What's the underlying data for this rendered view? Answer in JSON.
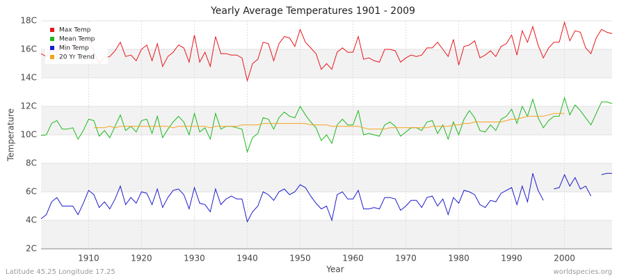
{
  "chart_data": {
    "type": "line",
    "title": "Yearly Average Temperatures 1901 - 2009",
    "x_label": "Year",
    "y_label": "Temperature",
    "footer_left": "Latitude 45.25 Longitude 17.25",
    "footer_right": "worldspecies.org",
    "x": [
      1901,
      1902,
      1903,
      1904,
      1905,
      1906,
      1907,
      1908,
      1909,
      1910,
      1911,
      1912,
      1913,
      1914,
      1915,
      1916,
      1917,
      1918,
      1919,
      1920,
      1921,
      1922,
      1923,
      1924,
      1925,
      1926,
      1927,
      1928,
      1929,
      1930,
      1931,
      1932,
      1933,
      1934,
      1935,
      1936,
      1937,
      1938,
      1939,
      1940,
      1941,
      1942,
      1943,
      1944,
      1945,
      1946,
      1947,
      1948,
      1949,
      1950,
      1951,
      1952,
      1953,
      1954,
      1955,
      1956,
      1957,
      1958,
      1959,
      1960,
      1961,
      1962,
      1963,
      1964,
      1965,
      1966,
      1967,
      1968,
      1969,
      1970,
      1971,
      1972,
      1973,
      1974,
      1975,
      1976,
      1977,
      1978,
      1979,
      1980,
      1981,
      1982,
      1983,
      1984,
      1985,
      1986,
      1987,
      1988,
      1989,
      1990,
      1991,
      1992,
      1993,
      1994,
      1995,
      1996,
      1997,
      1998,
      1999,
      2000,
      2001,
      2002,
      2003,
      2004,
      2005,
      2006,
      2007,
      2008,
      2009
    ],
    "series": [
      {
        "name": "Max Temp",
        "color": "#e8161b",
        "values": [
          15.7,
          15.5,
          15.9,
          15.8,
          16.6,
          15.8,
          16.3,
          16.7,
          16.8,
          16.6,
          15.9,
          15.0,
          15.4,
          15.5,
          15.9,
          16.5,
          15.5,
          15.6,
          15.2,
          16.0,
          16.3,
          15.2,
          16.4,
          14.8,
          15.5,
          15.8,
          16.3,
          16.1,
          15.1,
          17.0,
          15.1,
          15.8,
          14.8,
          16.9,
          15.7,
          15.7,
          15.6,
          15.6,
          15.4,
          13.8,
          15.0,
          15.3,
          16.5,
          16.4,
          15.2,
          16.4,
          16.9,
          16.8,
          16.2,
          17.4,
          16.5,
          16.1,
          15.7,
          14.6,
          15.0,
          14.6,
          15.8,
          16.1,
          15.8,
          15.8,
          16.9,
          15.3,
          15.4,
          15.2,
          15.1,
          16.0,
          16.0,
          15.9,
          15.1,
          15.4,
          15.6,
          15.5,
          15.6,
          16.1,
          16.1,
          16.5,
          16.0,
          15.5,
          16.7,
          14.9,
          16.2,
          16.3,
          16.6,
          15.4,
          15.6,
          15.9,
          15.5,
          16.2,
          16.4,
          17.0,
          15.6,
          17.3,
          16.5,
          17.6,
          16.3,
          15.4,
          16.1,
          16.5,
          16.5,
          17.9,
          16.6,
          17.3,
          17.2,
          16.1,
          15.7,
          16.8,
          17.4,
          17.2,
          17.1
        ]
      },
      {
        "name": "Mean Temp",
        "color": "#1db81d",
        "values": [
          9.95,
          10.0,
          10.8,
          11.0,
          10.4,
          10.4,
          10.5,
          9.7,
          10.3,
          11.1,
          11.0,
          9.9,
          10.3,
          9.8,
          10.6,
          11.4,
          10.3,
          10.6,
          10.2,
          11.0,
          11.1,
          10.1,
          11.3,
          9.8,
          10.4,
          10.9,
          11.3,
          10.9,
          10.0,
          11.5,
          10.2,
          10.5,
          9.7,
          11.5,
          10.4,
          10.6,
          10.6,
          10.5,
          10.4,
          8.8,
          9.8,
          10.1,
          11.2,
          11.1,
          10.4,
          11.2,
          11.6,
          11.3,
          11.2,
          12.0,
          11.4,
          10.9,
          10.5,
          9.6,
          10.0,
          9.4,
          10.7,
          11.1,
          10.7,
          10.7,
          11.7,
          10.0,
          10.1,
          10.0,
          9.9,
          10.7,
          10.9,
          10.6,
          9.9,
          10.2,
          10.5,
          10.5,
          10.3,
          10.9,
          11.0,
          10.1,
          10.7,
          9.7,
          10.9,
          10.0,
          11.1,
          11.7,
          11.2,
          10.3,
          10.2,
          10.7,
          10.3,
          11.1,
          11.3,
          11.8,
          10.8,
          12.0,
          11.3,
          12.5,
          11.2,
          10.5,
          11.0,
          11.3,
          11.3,
          12.6,
          11.4,
          12.1,
          11.7,
          11.2,
          10.7,
          11.5,
          12.3,
          12.3,
          12.2
        ]
      },
      {
        "name": "Min Temp",
        "color": "#1b1bcc",
        "values": [
          4.1,
          4.4,
          5.3,
          5.6,
          5.0,
          5.0,
          5.0,
          4.4,
          5.2,
          6.1,
          5.8,
          4.9,
          5.3,
          4.8,
          5.5,
          6.4,
          5.1,
          5.6,
          5.2,
          6.0,
          5.9,
          5.1,
          6.2,
          4.9,
          5.6,
          6.1,
          6.2,
          5.8,
          4.8,
          6.3,
          5.2,
          5.1,
          4.6,
          6.2,
          5.1,
          5.5,
          5.7,
          5.5,
          5.5,
          3.9,
          4.6,
          5.0,
          6.0,
          5.8,
          5.4,
          6.0,
          6.2,
          5.8,
          6.0,
          6.5,
          6.3,
          5.7,
          5.2,
          4.8,
          5.0,
          4.0,
          5.8,
          6.0,
          5.5,
          5.5,
          6.1,
          4.8,
          4.8,
          4.9,
          4.8,
          5.6,
          5.6,
          5.5,
          4.7,
          5.0,
          5.4,
          5.4,
          4.9,
          5.6,
          5.7,
          5.0,
          5.5,
          4.4,
          5.6,
          5.2,
          6.1,
          6.0,
          5.8,
          5.1,
          4.9,
          5.4,
          5.3,
          5.9,
          6.1,
          6.3,
          5.1,
          6.4,
          5.3,
          7.3,
          6.1,
          5.4,
          null,
          6.2,
          6.3,
          7.2,
          6.4,
          7.0,
          6.2,
          6.4,
          5.7,
          null,
          7.2,
          7.3,
          7.3
        ]
      },
      {
        "name": "20 Yr Trend",
        "color": "#f5a21c",
        "values": [
          null,
          null,
          null,
          null,
          null,
          null,
          null,
          null,
          null,
          null,
          10.5,
          10.5,
          10.5,
          10.6,
          10.5,
          10.6,
          10.6,
          10.6,
          10.6,
          10.6,
          10.6,
          10.6,
          10.6,
          10.6,
          10.6,
          10.5,
          10.6,
          10.6,
          10.6,
          10.6,
          10.6,
          10.6,
          10.5,
          10.6,
          10.6,
          10.6,
          10.6,
          10.6,
          10.7,
          10.7,
          10.7,
          10.7,
          10.8,
          10.8,
          10.8,
          10.8,
          10.8,
          10.8,
          10.8,
          10.8,
          10.8,
          10.7,
          10.7,
          10.7,
          10.7,
          10.6,
          10.6,
          10.6,
          10.6,
          10.6,
          10.6,
          10.5,
          10.4,
          10.4,
          10.4,
          10.4,
          10.5,
          10.5,
          10.5,
          10.5,
          10.5,
          10.5,
          10.5,
          10.5,
          10.6,
          10.6,
          10.6,
          10.6,
          10.7,
          10.7,
          10.8,
          10.8,
          10.9,
          10.9,
          10.9,
          10.9,
          10.9,
          10.9,
          11.0,
          11.1,
          11.1,
          11.2,
          11.3,
          11.3,
          11.3,
          11.3,
          11.4,
          11.5,
          11.5,
          11.5,
          null,
          null,
          null,
          null,
          null,
          null,
          null,
          null,
          null
        ]
      }
    ],
    "xlim": [
      1901,
      2009
    ],
    "xticks": [
      1910,
      1920,
      1930,
      1940,
      1950,
      1960,
      1970,
      1980,
      1990,
      2000
    ],
    "ylim": [
      2,
      18
    ],
    "yticks": [
      {
        "value": 2,
        "label": "2C"
      },
      {
        "value": 4,
        "label": "4C"
      },
      {
        "value": 6,
        "label": "6C"
      },
      {
        "value": 8,
        "label": "8C"
      },
      {
        "value": 10,
        "label": "10C"
      },
      {
        "value": 12,
        "label": "12C"
      },
      {
        "value": 14,
        "label": "14C"
      },
      {
        "value": 16,
        "label": "16C"
      },
      {
        "value": 18,
        "label": "18C"
      }
    ],
    "grid": true,
    "legend": "top-left"
  }
}
